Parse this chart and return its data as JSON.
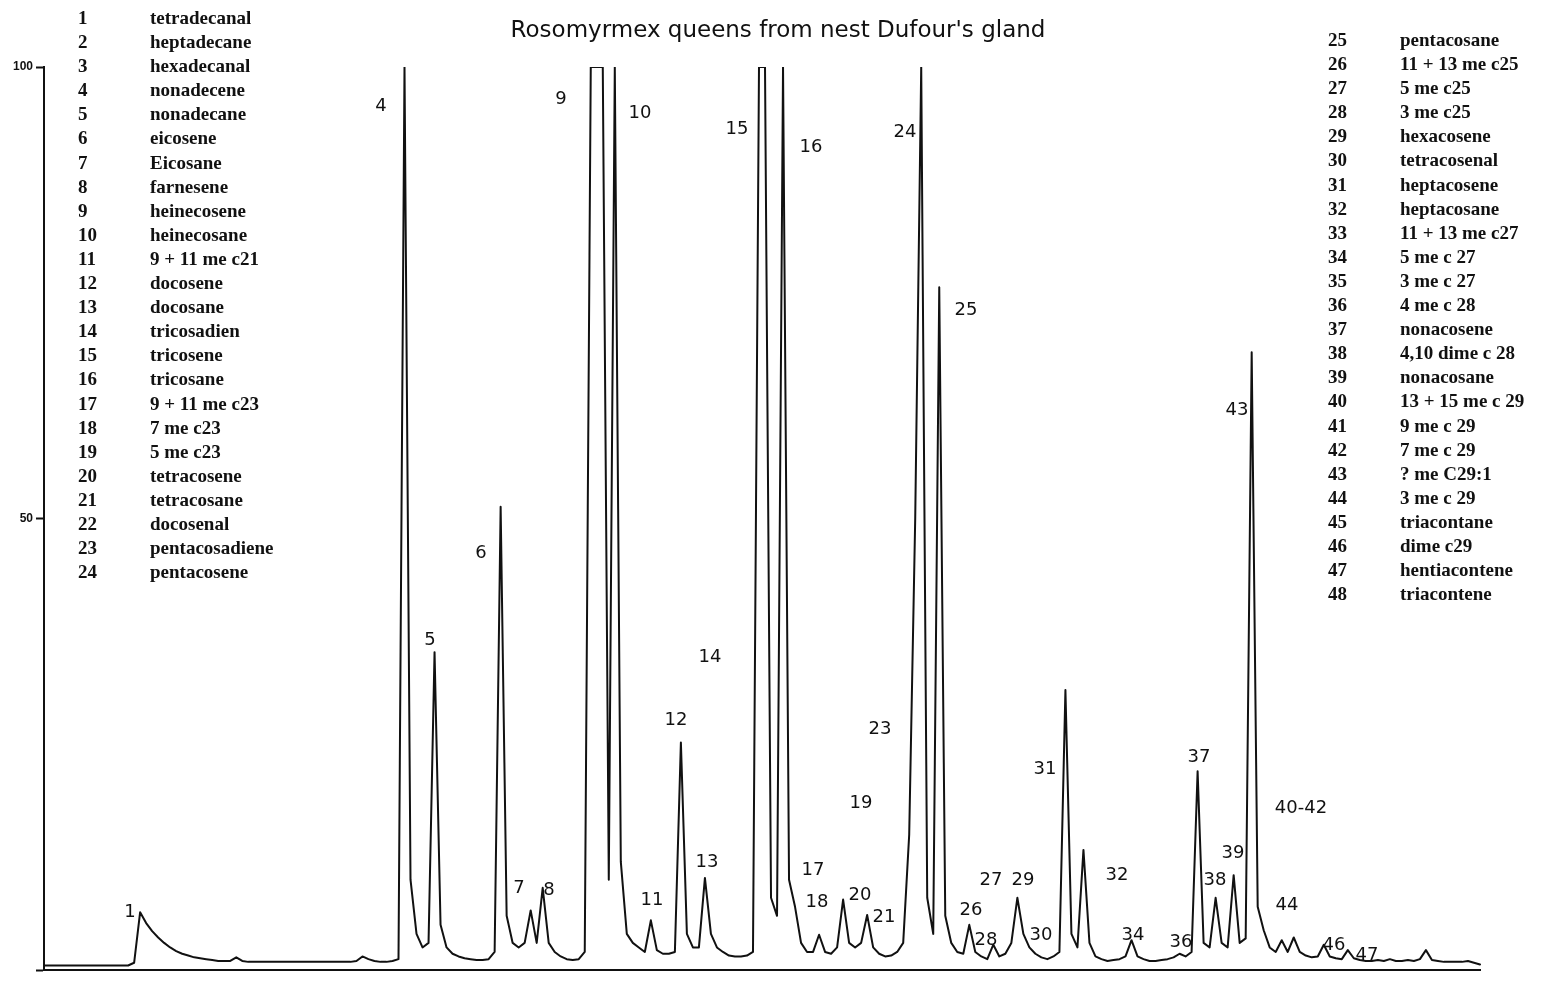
{
  "chart_data": {
    "type": "line",
    "title": "Rosomyrmex queens from nest Dufour's gland",
    "categories": [
      null,
      null,
      null,
      null,
      null,
      null,
      null,
      null,
      null,
      null,
      null,
      null,
      null,
      null,
      null,
      null,
      null,
      null,
      null,
      null,
      null,
      null,
      null,
      null,
      null,
      null,
      null,
      null,
      null,
      null,
      null,
      null,
      null,
      null,
      null,
      null,
      null,
      null,
      null,
      null,
      null,
      null,
      null,
      null,
      null,
      null,
      null,
      null,
      null,
      null,
      null,
      null,
      null,
      null,
      null,
      null,
      null,
      null,
      null,
      null,
      null,
      null,
      null,
      null,
      null,
      null,
      null,
      null,
      null,
      null,
      null,
      null,
      null,
      null,
      null,
      null,
      null,
      null,
      null,
      null,
      null,
      null,
      null,
      null,
      null,
      null,
      null,
      null,
      null,
      null,
      null,
      null,
      null,
      null,
      null,
      null,
      null,
      null,
      null,
      null,
      null,
      null,
      null,
      null,
      null,
      null,
      null,
      null,
      null,
      null,
      null,
      null,
      null,
      null,
      null,
      null,
      null,
      null,
      null,
      null,
      null,
      null,
      null,
      null,
      null,
      null,
      null,
      null,
      null,
      null,
      null,
      null,
      null,
      null,
      null,
      null,
      null,
      null,
      null,
      null,
      null,
      null,
      null,
      null,
      null,
      null,
      null,
      null,
      null,
      null,
      null,
      null,
      null,
      null,
      null,
      null,
      null,
      null,
      null,
      null,
      null,
      null,
      null,
      null,
      null,
      null,
      null,
      null,
      null,
      null,
      null,
      null,
      null,
      null,
      null,
      null,
      null,
      null,
      null,
      null,
      null,
      null,
      null,
      null,
      null,
      null,
      null,
      null,
      null,
      null,
      null,
      null,
      null,
      null,
      null,
      null,
      null,
      null,
      null,
      null,
      null,
      null,
      null,
      null,
      null,
      null,
      null,
      null,
      null,
      null,
      null,
      null,
      null,
      null,
      null,
      null,
      null,
      null,
      null,
      null,
      null,
      null,
      null,
      null,
      null,
      null,
      null,
      null,
      null,
      null,
      null,
      null,
      null,
      null,
      null,
      null,
      null,
      null,
      null,
      null
    ],
    "series": [
      {
        "color": "#111111",
        "values": [
          0.5,
          0.5,
          0.5,
          0.5,
          0.5,
          0.5,
          0.5,
          0.5,
          0.5,
          0.5,
          0.5,
          0.5,
          0.5,
          0.5,
          0.5,
          0.8,
          6.4,
          5.2,
          4.3,
          3.6,
          3.0,
          2.5,
          2.1,
          1.8,
          1.6,
          1.4,
          1.3,
          1.2,
          1.1,
          1.0,
          1.0,
          1.0,
          1.4,
          1.0,
          0.9,
          0.9,
          0.9,
          0.9,
          0.9,
          0.9,
          0.9,
          0.9,
          0.9,
          0.9,
          0.9,
          0.9,
          0.9,
          0.9,
          0.9,
          0.9,
          0.9,
          0.9,
          1.0,
          1.5,
          1.2,
          1.0,
          0.9,
          0.9,
          1.0,
          1.2,
          100,
          10,
          4,
          2.5,
          3,
          35.2,
          5,
          2.5,
          1.8,
          1.5,
          1.3,
          1.2,
          1.1,
          1.1,
          1.2,
          2,
          51.3,
          6,
          3,
          2.5,
          3,
          6.6,
          3,
          9.1,
          3,
          2,
          1.5,
          1.2,
          1.1,
          1.2,
          2,
          100,
          100,
          100,
          10,
          100,
          12,
          4,
          3,
          2.5,
          2,
          5.5,
          2.2,
          1.8,
          1.8,
          2,
          25.2,
          4,
          2.5,
          2.5,
          10.2,
          4,
          2.5,
          2,
          1.6,
          1.5,
          1.5,
          1.6,
          2,
          100,
          100,
          8,
          6,
          100,
          10,
          7,
          3,
          2,
          2,
          3.9,
          2,
          1.8,
          2.5,
          7.8,
          3,
          2.5,
          3,
          6.1,
          2.5,
          1.8,
          1.5,
          1.6,
          2,
          3,
          15,
          50,
          100,
          8,
          4,
          75.6,
          6,
          3,
          2,
          1.8,
          5.0,
          2,
          1.5,
          1.2,
          2.8,
          1.5,
          1.8,
          3,
          8,
          4,
          2.5,
          1.8,
          1.4,
          1.2,
          1.5,
          2,
          31,
          4,
          2.5,
          13.3,
          3,
          1.5,
          1.2,
          1.0,
          1.1,
          1.2,
          1.5,
          3.3,
          1.5,
          1.2,
          1.0,
          1.0,
          1.1,
          1.2,
          1.4,
          1.8,
          1.5,
          2,
          22,
          3,
          2.5,
          8,
          3,
          2.5,
          10.5,
          3,
          3.5,
          68.4,
          7,
          4.4,
          2.5,
          2,
          3.3,
          2,
          3.6,
          2,
          1.6,
          1.4,
          1.5,
          2.8,
          1.5,
          1.3,
          1.2,
          2.2,
          1.3,
          1.1,
          1.0,
          1.0,
          1.1,
          1.0,
          1.2,
          1.0,
          1.0,
          1.1,
          1.0,
          1.2,
          2.2,
          1.1,
          1.0,
          0.9,
          0.9,
          0.9,
          0.9,
          1.0,
          0.8,
          0.6
        ]
      }
    ],
    "ylim": [
      0,
      100
    ],
    "yticks": [
      {
        "value": 0,
        "label": null
      },
      50,
      100
    ],
    "grid": false,
    "legend": false,
    "marker": "none",
    "line_style": "solid",
    "tick_labels": "y",
    "annotations": [
      "1 tetradecanal",
      "2 heptadecane",
      "3 hexadecanal",
      "4 nonadecene",
      "5 nonadecane",
      "6 eicosene",
      "7 Eicosane",
      "8 farnesene",
      "9 heinecosene",
      "10 heinecosane",
      "11 9 + 11 me c21",
      "12 docosene",
      "13 docosane",
      "14 tricosadien",
      "15 tricosene",
      "16 tricosane",
      "17 9 + 11 me c23",
      "18 7 me c23",
      "19 5 me c23",
      "20 tetracosene",
      "21 tetracosane",
      "22 docosenal",
      "23 pentacosadiene",
      "24 pentacosene",
      "25 pentacosane",
      "26 11 + 13 me c25",
      "27 5 me c25",
      "28 3 me c25",
      "29 hexacosene",
      "30 tetracosenal",
      "31 heptacosene",
      "32 heptacosane",
      "33 11 + 13 me c27",
      "34 5 me c 27",
      "35 3 me c 27",
      "36 4 me c 28",
      "37 nonacosene",
      "38 4,10 dime c 28",
      "39 nonacosane",
      "40 13 + 15 me c 29",
      "41 9 me c 29",
      "42 7 me c 29",
      "43 ? me C29:1",
      "44 3 me c 29",
      "45 triacontane",
      "46 dime c29",
      "47 hentiacontene",
      "48 triacontene",
      "1",
      "4",
      "5",
      "6",
      "7",
      "8",
      "9",
      "10",
      "11",
      "12",
      "13",
      "14",
      "15",
      "16",
      "17",
      "18",
      "19",
      "20",
      "21",
      "23",
      "24",
      "25",
      "26",
      "27",
      "28",
      "29",
      "30",
      "31",
      "32",
      "34",
      "36",
      "37",
      "38",
      "39",
      "40-42",
      "43",
      "44",
      "46",
      "47"
    ]
  }
}
